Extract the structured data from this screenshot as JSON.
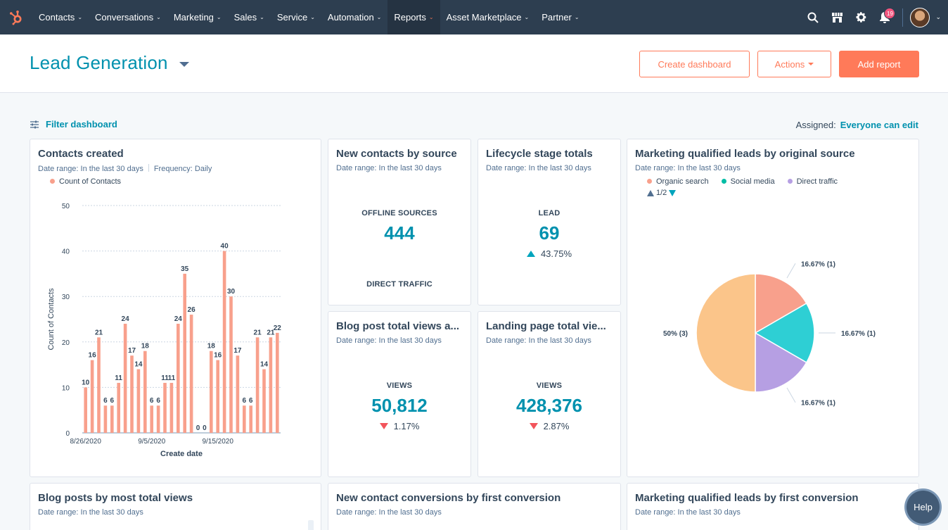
{
  "nav": {
    "items": [
      {
        "label": "Contacts"
      },
      {
        "label": "Conversations"
      },
      {
        "label": "Marketing"
      },
      {
        "label": "Sales"
      },
      {
        "label": "Service"
      },
      {
        "label": "Automation"
      },
      {
        "label": "Reports"
      },
      {
        "label": "Asset Marketplace"
      },
      {
        "label": "Partner"
      }
    ],
    "notification_count": "19"
  },
  "header": {
    "title": "Lead Generation",
    "create_dashboard": "Create dashboard",
    "actions": "Actions",
    "add_report": "Add report"
  },
  "filter": {
    "label": "Filter dashboard"
  },
  "assigned": {
    "label": "Assigned:",
    "value": "Everyone can edit"
  },
  "cards": {
    "contacts_created": {
      "title": "Contacts created",
      "date_range": "Date range: In the last 30 days",
      "frequency": "Frequency: Daily",
      "legend": "Count of Contacts"
    },
    "new_contacts": {
      "title": "New contacts by source",
      "date_range": "Date range: In the last 30 days",
      "kpi_label": "OFFLINE SOURCES",
      "kpi_value": "444",
      "kpi_label2": "DIRECT TRAFFIC"
    },
    "lifecycle": {
      "title": "Lifecycle stage totals",
      "date_range": "Date range: In the last 30 days",
      "kpi_label": "LEAD",
      "kpi_value": "69",
      "kpi_change": "43.75%"
    },
    "mql_source": {
      "title": "Marketing qualified leads by original source",
      "date_range": "Date range: In the last 30 days",
      "pager": "1/2"
    },
    "blog_views": {
      "title": "Blog post total views a...",
      "date_range": "Date range: In the last 30 days",
      "kpi_label": "VIEWS",
      "kpi_value": "50,812",
      "kpi_change": "1.17%"
    },
    "landing_views": {
      "title": "Landing page total vie...",
      "date_range": "Date range: In the last 30 days",
      "kpi_label": "VIEWS",
      "kpi_value": "428,376",
      "kpi_change": "2.87%"
    },
    "blog_posts": {
      "title": "Blog posts by most total views",
      "date_range": "Date range: In the last 30 days"
    },
    "conversions": {
      "title": "New contact conversions by first conversion",
      "date_range": "Date range: In the last 30 days"
    },
    "mql_first": {
      "title": "Marketing qualified leads by first conversion",
      "date_range": "Date range: In the last 30 days"
    }
  },
  "help": {
    "label": "Help"
  },
  "colors": {
    "accent": "#ff7a59",
    "teal": "#0091ae",
    "nav_bg": "#2d3e50",
    "bar": "#f8a08c"
  },
  "chart_data": [
    {
      "type": "bar",
      "title": "Contacts created",
      "xlabel": "Create date",
      "ylabel": "Count of Contacts",
      "ylim": [
        0,
        50
      ],
      "yticks": [
        0,
        10,
        20,
        30,
        40,
        50
      ],
      "x_tick_labels": [
        "8/26/2020",
        "9/5/2020",
        "9/15/2020"
      ],
      "series": [
        {
          "name": "Count of Contacts",
          "values": [
            10,
            16,
            21,
            6,
            6,
            11,
            24,
            17,
            14,
            18,
            6,
            6,
            11,
            11,
            24,
            35,
            26,
            0,
            0,
            18,
            16,
            40,
            30,
            17,
            6,
            6,
            21,
            14,
            21,
            22
          ]
        }
      ],
      "grid": true
    },
    {
      "type": "pie",
      "title": "Marketing qualified leads by original source",
      "legend": [
        "Organic search",
        "Social media",
        "Direct traffic"
      ],
      "slices": [
        {
          "name": "Organic search",
          "value": 1,
          "label": "16.67% (1)",
          "color": "#f8a08c"
        },
        {
          "name": "Social media",
          "value": 1,
          "label": "16.67% (1)",
          "color": "#2ecfd4"
        },
        {
          "name": "Direct traffic",
          "value": 1,
          "label": "16.67% (1)",
          "color": "#b69fe3"
        },
        {
          "name": "",
          "value": 3,
          "label": "50% (3)",
          "color": "#fbc58a"
        }
      ]
    }
  ]
}
